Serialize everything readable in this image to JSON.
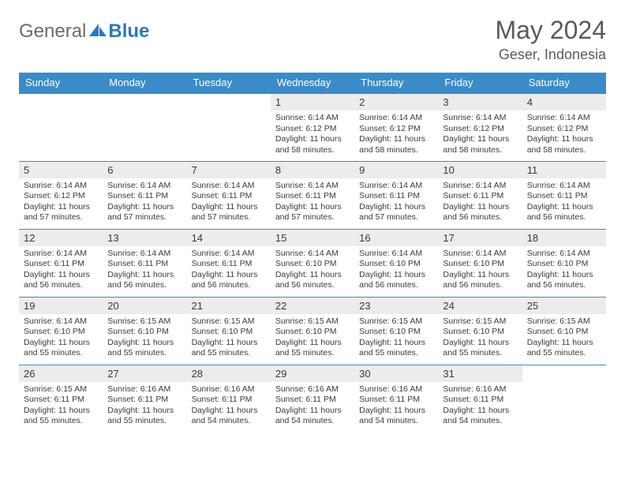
{
  "brand": {
    "part1": "General",
    "part2": "Blue"
  },
  "title": "May 2024",
  "location": "Geser, Indonesia",
  "colors": {
    "header_bg": "#3b8bc8",
    "header_text": "#ffffff",
    "daynum_bg": "#ececec",
    "text": "#3a3a3a",
    "brand_gray": "#6b6b6b",
    "brand_blue": "#2f79b9",
    "row_border": "#3b8bc8",
    "page_bg": "#ffffff"
  },
  "typography": {
    "title_fontsize": 32,
    "location_fontsize": 18,
    "dayheader_fontsize": 13,
    "daynum_fontsize": 13,
    "info_fontsize": 10.5
  },
  "day_headers": [
    "Sunday",
    "Monday",
    "Tuesday",
    "Wednesday",
    "Thursday",
    "Friday",
    "Saturday"
  ],
  "weeks": [
    [
      {
        "empty": true
      },
      {
        "empty": true
      },
      {
        "empty": true
      },
      {
        "n": "1",
        "sr": "6:14 AM",
        "ss": "6:12 PM",
        "dl": "11 hours and 58 minutes."
      },
      {
        "n": "2",
        "sr": "6:14 AM",
        "ss": "6:12 PM",
        "dl": "11 hours and 58 minutes."
      },
      {
        "n": "3",
        "sr": "6:14 AM",
        "ss": "6:12 PM",
        "dl": "11 hours and 58 minutes."
      },
      {
        "n": "4",
        "sr": "6:14 AM",
        "ss": "6:12 PM",
        "dl": "11 hours and 58 minutes."
      }
    ],
    [
      {
        "n": "5",
        "sr": "6:14 AM",
        "ss": "6:12 PM",
        "dl": "11 hours and 57 minutes."
      },
      {
        "n": "6",
        "sr": "6:14 AM",
        "ss": "6:11 PM",
        "dl": "11 hours and 57 minutes."
      },
      {
        "n": "7",
        "sr": "6:14 AM",
        "ss": "6:11 PM",
        "dl": "11 hours and 57 minutes."
      },
      {
        "n": "8",
        "sr": "6:14 AM",
        "ss": "6:11 PM",
        "dl": "11 hours and 57 minutes."
      },
      {
        "n": "9",
        "sr": "6:14 AM",
        "ss": "6:11 PM",
        "dl": "11 hours and 57 minutes."
      },
      {
        "n": "10",
        "sr": "6:14 AM",
        "ss": "6:11 PM",
        "dl": "11 hours and 56 minutes."
      },
      {
        "n": "11",
        "sr": "6:14 AM",
        "ss": "6:11 PM",
        "dl": "11 hours and 56 minutes."
      }
    ],
    [
      {
        "n": "12",
        "sr": "6:14 AM",
        "ss": "6:11 PM",
        "dl": "11 hours and 56 minutes."
      },
      {
        "n": "13",
        "sr": "6:14 AM",
        "ss": "6:11 PM",
        "dl": "11 hours and 56 minutes."
      },
      {
        "n": "14",
        "sr": "6:14 AM",
        "ss": "6:11 PM",
        "dl": "11 hours and 56 minutes."
      },
      {
        "n": "15",
        "sr": "6:14 AM",
        "ss": "6:10 PM",
        "dl": "11 hours and 56 minutes."
      },
      {
        "n": "16",
        "sr": "6:14 AM",
        "ss": "6:10 PM",
        "dl": "11 hours and 56 minutes."
      },
      {
        "n": "17",
        "sr": "6:14 AM",
        "ss": "6:10 PM",
        "dl": "11 hours and 56 minutes."
      },
      {
        "n": "18",
        "sr": "6:14 AM",
        "ss": "6:10 PM",
        "dl": "11 hours and 56 minutes."
      }
    ],
    [
      {
        "n": "19",
        "sr": "6:14 AM",
        "ss": "6:10 PM",
        "dl": "11 hours and 55 minutes."
      },
      {
        "n": "20",
        "sr": "6:15 AM",
        "ss": "6:10 PM",
        "dl": "11 hours and 55 minutes."
      },
      {
        "n": "21",
        "sr": "6:15 AM",
        "ss": "6:10 PM",
        "dl": "11 hours and 55 minutes."
      },
      {
        "n": "22",
        "sr": "6:15 AM",
        "ss": "6:10 PM",
        "dl": "11 hours and 55 minutes."
      },
      {
        "n": "23",
        "sr": "6:15 AM",
        "ss": "6:10 PM",
        "dl": "11 hours and 55 minutes."
      },
      {
        "n": "24",
        "sr": "6:15 AM",
        "ss": "6:10 PM",
        "dl": "11 hours and 55 minutes."
      },
      {
        "n": "25",
        "sr": "6:15 AM",
        "ss": "6:10 PM",
        "dl": "11 hours and 55 minutes."
      }
    ],
    [
      {
        "n": "26",
        "sr": "6:15 AM",
        "ss": "6:11 PM",
        "dl": "11 hours and 55 minutes."
      },
      {
        "n": "27",
        "sr": "6:16 AM",
        "ss": "6:11 PM",
        "dl": "11 hours and 55 minutes."
      },
      {
        "n": "28",
        "sr": "6:16 AM",
        "ss": "6:11 PM",
        "dl": "11 hours and 54 minutes."
      },
      {
        "n": "29",
        "sr": "6:16 AM",
        "ss": "6:11 PM",
        "dl": "11 hours and 54 minutes."
      },
      {
        "n": "30",
        "sr": "6:16 AM",
        "ss": "6:11 PM",
        "dl": "11 hours and 54 minutes."
      },
      {
        "n": "31",
        "sr": "6:16 AM",
        "ss": "6:11 PM",
        "dl": "11 hours and 54 minutes."
      },
      {
        "empty": true
      }
    ]
  ],
  "labels": {
    "sunrise": "Sunrise: ",
    "sunset": "Sunset: ",
    "daylight": "Daylight: "
  }
}
